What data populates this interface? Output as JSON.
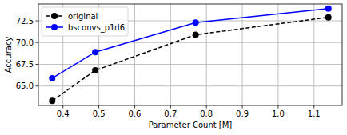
{
  "chart_data": {
    "type": "line",
    "x_label": "Parameter Count [M]",
    "y_label": "Accuracy",
    "x": [
      0.37,
      0.49,
      0.77,
      1.14
    ],
    "series": [
      {
        "name": "original",
        "color": "#000000",
        "marker": "circle",
        "line_style": "dashed",
        "values": [
          63.3,
          66.8,
          70.9,
          72.9
        ]
      },
      {
        "name": "bsconvs_p1d6",
        "color": "#0000ff",
        "marker": "circle",
        "line_style": "solid",
        "values": [
          65.9,
          68.9,
          72.3,
          73.9
        ]
      }
    ],
    "xlim": [
      0.3315,
      1.1785
    ],
    "ylim": [
      62.77,
      74.43
    ],
    "xticks": [
      0.4,
      0.5,
      0.6,
      0.7,
      0.8,
      0.9,
      {
        "value": 1.0,
        "label": "1.0"
      },
      1.1
    ],
    "yticks": [
      {
        "value": 65,
        "label": "65.0"
      },
      67.5,
      {
        "value": 70,
        "label": "70.0"
      },
      72.5
    ],
    "grid": true,
    "legend": "upper-left"
  }
}
